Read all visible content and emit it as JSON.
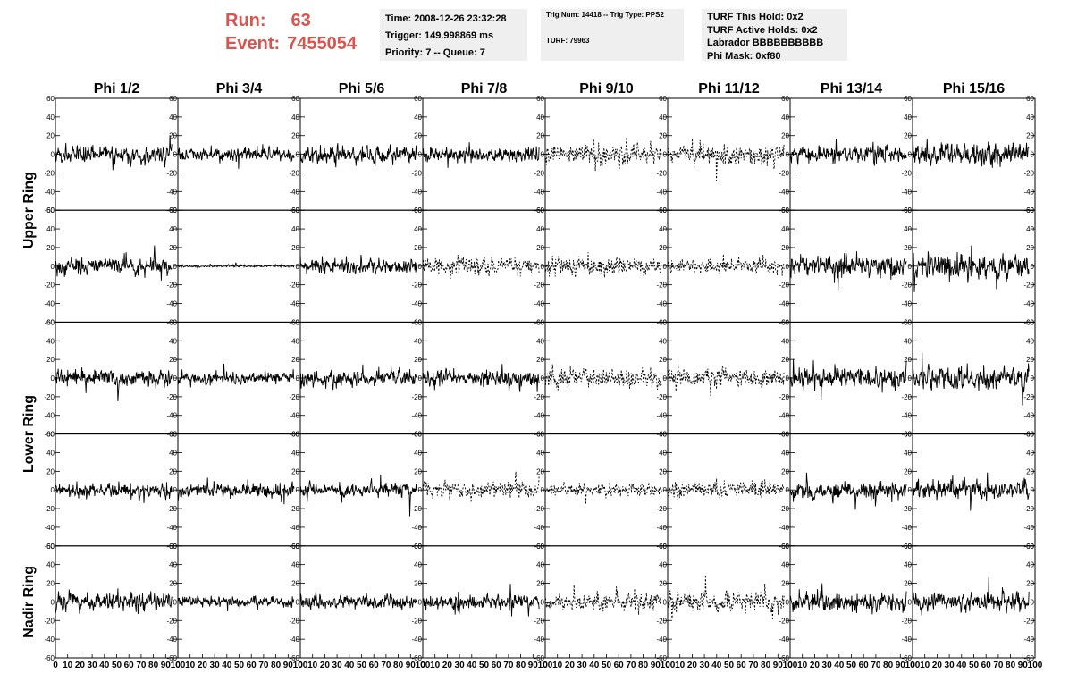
{
  "header": {
    "run_label": "Run:",
    "run_value": "63",
    "event_label": "Event:",
    "event_value": "7455054",
    "time": "Time: 2008-12-26 23:32:28",
    "trigger": "Trigger: 149.998869 ms",
    "priority": "Priority: 7 -- Queue: 7",
    "trig_num": "Trig Num: 14418 -- Trig Type: PPS2",
    "turf": "TURF: 79963",
    "turf_hold": "TURF This Hold: 0x2",
    "turf_active": "TURF Active Holds: 0x2",
    "labrador": "Labrador BBBBBBBBBB",
    "phi_mask": "Phi Mask: 0xf80"
  },
  "colors": {
    "header_text": "#d9534f",
    "info_bg": "#efefef",
    "trace": "#000000"
  },
  "chart_data": {
    "type": "line",
    "columns": [
      "Phi 1/2",
      "Phi 3/4",
      "Phi 5/6",
      "Phi 7/8",
      "Phi 9/10",
      "Phi 11/12",
      "Phi 13/14",
      "Phi 15/16"
    ],
    "ring_labels": [
      {
        "label": "Upper Ring",
        "rows": [
          0,
          1
        ]
      },
      {
        "label": "Lower Ring",
        "rows": [
          2,
          3
        ]
      },
      {
        "label": "Nadir Ring",
        "rows": [
          4
        ]
      }
    ],
    "rows": 5,
    "ylim": [
      -60,
      60
    ],
    "xlim": [
      0,
      100
    ],
    "yticks": [
      -60,
      -40,
      -20,
      0,
      20,
      40,
      60
    ],
    "ytick_labels": [
      "-60",
      "-40",
      "-20",
      "0",
      "20",
      "40",
      "60"
    ],
    "xticks": [
      0,
      10,
      20,
      30,
      40,
      50,
      60,
      70,
      80,
      90,
      100
    ],
    "xtick_labels": [
      "0",
      "10",
      "20",
      "30",
      "40",
      "50",
      "60",
      "70",
      "80",
      "90",
      "100"
    ],
    "samples": 256,
    "trace_x_max": 95,
    "amplitude": [
      [
        14,
        10,
        14,
        11,
        16,
        15,
        14,
        17
      ],
      [
        14,
        2,
        12,
        14,
        14,
        12,
        17,
        20
      ],
      [
        14,
        10,
        13,
        13,
        15,
        14,
        16,
        18
      ],
      [
        12,
        12,
        12,
        13,
        10,
        13,
        14,
        16
      ],
      [
        14,
        9,
        11,
        11,
        12,
        16,
        15,
        14
      ]
    ],
    "dashed": [
      [
        false,
        false,
        false,
        false,
        true,
        true,
        false,
        false
      ],
      [
        false,
        false,
        false,
        true,
        true,
        true,
        false,
        false
      ],
      [
        false,
        false,
        false,
        false,
        true,
        true,
        false,
        false
      ],
      [
        false,
        false,
        false,
        true,
        true,
        true,
        false,
        false
      ],
      [
        false,
        false,
        false,
        false,
        true,
        true,
        false,
        false
      ]
    ]
  }
}
